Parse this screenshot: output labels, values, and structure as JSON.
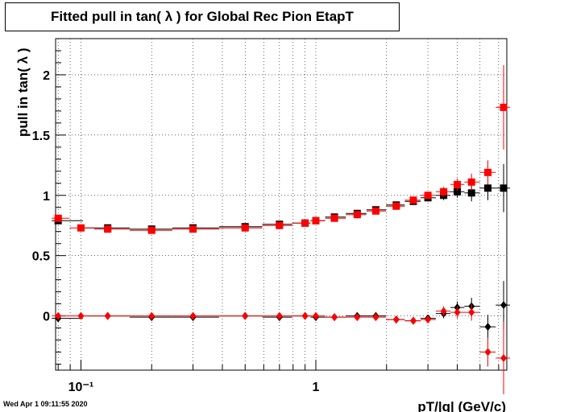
{
  "title": "Fitted pull in tan( λ ) for Global Rec Pion EtapT",
  "timestamp": "Wed Apr  1 09:11:55 2020",
  "chart_data": {
    "type": "scatter",
    "title": "Fitted pull in tan( λ ) for Global Rec Pion EtapT",
    "xlabel": "pT/|q| (GeV/c)",
    "ylabel": "pull in tan( λ )",
    "x_scale": "log",
    "xlim": [
      0.078,
      6.5
    ],
    "ylim": [
      -0.45,
      2.3
    ],
    "x_tick_labels": [
      {
        "value": 0.1,
        "label": "10⁻¹"
      },
      {
        "value": 1,
        "label": "1"
      }
    ],
    "y_ticks": [
      0,
      0.5,
      1,
      1.5,
      2
    ],
    "y_tick_labels": [
      "0",
      "0.5",
      "1",
      "1.5",
      "2"
    ],
    "grid": true,
    "series": [
      {
        "color": "#000000",
        "marker": "square",
        "x": [
          0.08,
          0.13,
          0.2,
          0.3,
          0.5,
          0.7,
          0.9,
          1.0,
          1.2,
          1.5,
          1.8,
          2.2,
          2.6,
          3.0,
          3.5,
          4.0,
          4.6,
          5.4,
          6.3
        ],
        "y": [
          0.79,
          0.73,
          0.72,
          0.73,
          0.74,
          0.76,
          0.77,
          0.79,
          0.82,
          0.85,
          0.88,
          0.92,
          0.95,
          0.98,
          1.0,
          1.03,
          1.02,
          1.06,
          1.06
        ],
        "yerr": [
          0.02,
          0.01,
          0.01,
          0.01,
          0.01,
          0.01,
          0.01,
          0.01,
          0.01,
          0.01,
          0.02,
          0.02,
          0.02,
          0.03,
          0.04,
          0.05,
          0.07,
          0.1,
          0.2
        ]
      },
      {
        "color": "#ff0000",
        "marker": "square",
        "x": [
          0.08,
          0.1,
          0.13,
          0.2,
          0.3,
          0.5,
          0.7,
          0.9,
          1.0,
          1.2,
          1.5,
          1.8,
          2.2,
          2.6,
          3.0,
          3.5,
          4.0,
          4.6,
          5.4,
          6.3
        ],
        "y": [
          0.81,
          0.73,
          0.72,
          0.71,
          0.72,
          0.73,
          0.75,
          0.77,
          0.79,
          0.81,
          0.84,
          0.87,
          0.91,
          0.96,
          1.0,
          1.03,
          1.09,
          1.11,
          1.19,
          1.73
        ],
        "yerr": [
          0.02,
          0.01,
          0.01,
          0.01,
          0.01,
          0.01,
          0.01,
          0.01,
          0.01,
          0.01,
          0.01,
          0.02,
          0.02,
          0.02,
          0.03,
          0.04,
          0.05,
          0.07,
          0.1,
          0.35
        ]
      },
      {
        "color": "#000000",
        "marker": "diamond",
        "x": [
          0.08,
          0.13,
          0.2,
          0.3,
          0.5,
          0.7,
          0.9,
          1.0,
          1.2,
          1.5,
          1.8,
          2.2,
          2.6,
          3.0,
          3.5,
          4.0,
          4.6,
          5.4,
          6.3
        ],
        "y": [
          -0.02,
          0.0,
          -0.01,
          -0.01,
          0.0,
          -0.01,
          0.0,
          -0.01,
          -0.01,
          0.0,
          0.0,
          -0.03,
          -0.04,
          -0.02,
          0.02,
          0.07,
          0.08,
          -0.09,
          0.09
        ],
        "yerr": [
          0.02,
          0.01,
          0.01,
          0.01,
          0.01,
          0.01,
          0.01,
          0.01,
          0.01,
          0.01,
          0.02,
          0.02,
          0.02,
          0.03,
          0.04,
          0.05,
          0.07,
          0.1,
          0.2
        ]
      },
      {
        "color": "#ff0000",
        "marker": "diamond",
        "x": [
          0.08,
          0.1,
          0.13,
          0.2,
          0.3,
          0.5,
          0.7,
          0.9,
          1.0,
          1.2,
          1.5,
          1.8,
          2.2,
          2.6,
          3.0,
          3.5,
          4.0,
          4.6,
          5.4,
          6.3
        ],
        "y": [
          0.0,
          0.0,
          0.0,
          0.0,
          0.0,
          0.0,
          0.0,
          0.0,
          0.0,
          -0.01,
          -0.01,
          -0.01,
          -0.03,
          -0.04,
          -0.03,
          0.04,
          0.03,
          0.03,
          -0.3,
          -0.35
        ],
        "yerr": [
          0.02,
          0.01,
          0.01,
          0.01,
          0.01,
          0.01,
          0.01,
          0.01,
          0.01,
          0.01,
          0.01,
          0.02,
          0.02,
          0.02,
          0.03,
          0.04,
          0.05,
          0.07,
          0.12,
          0.3
        ]
      }
    ]
  }
}
